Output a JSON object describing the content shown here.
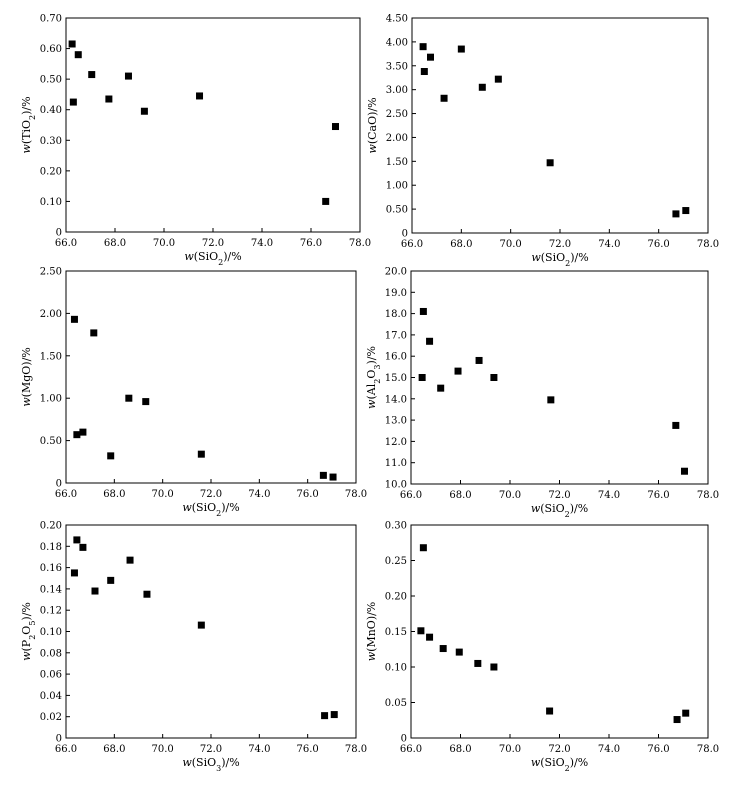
{
  "chart_data": [
    {
      "type": "scatter",
      "xlabel": "w(SiO2)/%",
      "ylabel": "w(TiO2)/%",
      "xlim": [
        66.0,
        78.0
      ],
      "ylim": [
        0,
        0.7
      ],
      "xticks": [
        "66.0",
        "68.0",
        "70.0",
        "72.0",
        "74.0",
        "76.0",
        "78.0"
      ],
      "yticks": [
        "0",
        "0.10",
        "0.20",
        "0.30",
        "0.40",
        "0.50",
        "0.60",
        "0.70"
      ],
      "points": [
        {
          "x": 66.25,
          "y": 0.615
        },
        {
          "x": 66.5,
          "y": 0.58
        },
        {
          "x": 66.3,
          "y": 0.425
        },
        {
          "x": 67.05,
          "y": 0.515
        },
        {
          "x": 67.75,
          "y": 0.435
        },
        {
          "x": 68.55,
          "y": 0.51
        },
        {
          "x": 69.2,
          "y": 0.395
        },
        {
          "x": 71.45,
          "y": 0.445
        },
        {
          "x": 76.6,
          "y": 0.1
        },
        {
          "x": 77.0,
          "y": 0.345
        }
      ]
    },
    {
      "type": "scatter",
      "xlabel": "w(SiO2)/%",
      "ylabel": "w(CaO)/%",
      "xlim": [
        66.0,
        78.0
      ],
      "ylim": [
        0,
        4.5
      ],
      "xticks": [
        "66.0",
        "68.0",
        "70.0",
        "72.0",
        "74.0",
        "76.0",
        "78.0"
      ],
      "yticks": [
        "0",
        "0.50",
        "1.00",
        "1.50",
        "2.00",
        "2.50",
        "3.00",
        "3.50",
        "4.00",
        "4.50"
      ],
      "points": [
        {
          "x": 66.45,
          "y": 3.9
        },
        {
          "x": 66.5,
          "y": 3.38
        },
        {
          "x": 66.75,
          "y": 3.68
        },
        {
          "x": 67.3,
          "y": 2.82
        },
        {
          "x": 68.0,
          "y": 3.85
        },
        {
          "x": 68.85,
          "y": 3.05
        },
        {
          "x": 69.5,
          "y": 3.22
        },
        {
          "x": 71.6,
          "y": 1.47
        },
        {
          "x": 76.7,
          "y": 0.4
        },
        {
          "x": 77.1,
          "y": 0.47
        }
      ]
    },
    {
      "type": "scatter",
      "xlabel": "w(SiO2)/%",
      "ylabel": "w(MgO)/%",
      "xlim": [
        66.0,
        78.0
      ],
      "ylim": [
        0,
        2.5
      ],
      "xticks": [
        "66.0",
        "68.0",
        "70.0",
        "72.0",
        "74.0",
        "76.0",
        "78.0"
      ],
      "yticks": [
        "0",
        "0.50",
        "1.00",
        "1.50",
        "2.00",
        "2.50"
      ],
      "points": [
        {
          "x": 66.35,
          "y": 1.93
        },
        {
          "x": 66.45,
          "y": 0.57
        },
        {
          "x": 66.7,
          "y": 0.6
        },
        {
          "x": 67.15,
          "y": 1.77
        },
        {
          "x": 67.85,
          "y": 0.32
        },
        {
          "x": 68.6,
          "y": 1.0
        },
        {
          "x": 69.3,
          "y": 0.96
        },
        {
          "x": 71.6,
          "y": 0.34
        },
        {
          "x": 76.65,
          "y": 0.09
        },
        {
          "x": 77.05,
          "y": 0.07
        }
      ]
    },
    {
      "type": "scatter",
      "xlabel": "w(SiO2)/%",
      "ylabel": "w(Al2O3)/%",
      "xlim": [
        66.0,
        78.0
      ],
      "ylim": [
        10.0,
        20.0
      ],
      "xticks": [
        "66.0",
        "68.0",
        "70.0",
        "72.0",
        "74.0",
        "76.0",
        "78.0"
      ],
      "yticks": [
        "10.0",
        "11.0",
        "12.0",
        "13.0",
        "14.0",
        "15.0",
        "16.0",
        "17.0",
        "18.0",
        "19.0",
        "20.0"
      ],
      "points": [
        {
          "x": 66.5,
          "y": 18.1
        },
        {
          "x": 66.45,
          "y": 15.0
        },
        {
          "x": 66.75,
          "y": 16.7
        },
        {
          "x": 67.2,
          "y": 14.5
        },
        {
          "x": 67.9,
          "y": 15.3
        },
        {
          "x": 68.75,
          "y": 15.8
        },
        {
          "x": 69.35,
          "y": 15.0
        },
        {
          "x": 71.65,
          "y": 13.95
        },
        {
          "x": 76.7,
          "y": 12.75
        },
        {
          "x": 77.05,
          "y": 10.6
        }
      ]
    },
    {
      "type": "scatter",
      "xlabel": "w(SiO3)/%",
      "ylabel": "w(P2O5)/%",
      "xlim": [
        66.0,
        78.0
      ],
      "ylim": [
        0,
        0.2
      ],
      "xticks": [
        "66.0",
        "68.0",
        "70.0",
        "72.0",
        "74.0",
        "76.0",
        "78.0"
      ],
      "yticks": [
        "0",
        "0.02",
        "0.04",
        "0.06",
        "0.08",
        "0.10",
        "0.12",
        "0.14",
        "0.16",
        "0.18",
        "0.20"
      ],
      "points": [
        {
          "x": 66.35,
          "y": 0.155
        },
        {
          "x": 66.45,
          "y": 0.186
        },
        {
          "x": 66.7,
          "y": 0.179
        },
        {
          "x": 67.2,
          "y": 0.138
        },
        {
          "x": 67.85,
          "y": 0.148
        },
        {
          "x": 68.65,
          "y": 0.167
        },
        {
          "x": 69.35,
          "y": 0.135
        },
        {
          "x": 71.6,
          "y": 0.106
        },
        {
          "x": 76.7,
          "y": 0.021
        },
        {
          "x": 77.1,
          "y": 0.022
        }
      ]
    },
    {
      "type": "scatter",
      "xlabel": "w(SiO2)/%",
      "ylabel": "w(MnO)/%",
      "xlim": [
        66.0,
        78.0
      ],
      "ylim": [
        0,
        0.3
      ],
      "xticks": [
        "66.0",
        "68.0",
        "70.0",
        "72.0",
        "74.0",
        "76.0",
        "78.0"
      ],
      "yticks": [
        "0",
        "0.05",
        "0.10",
        "0.15",
        "0.20",
        "0.25",
        "0.30"
      ],
      "points": [
        {
          "x": 66.4,
          "y": 0.151
        },
        {
          "x": 66.5,
          "y": 0.268
        },
        {
          "x": 66.75,
          "y": 0.142
        },
        {
          "x": 67.3,
          "y": 0.126
        },
        {
          "x": 67.95,
          "y": 0.121
        },
        {
          "x": 68.7,
          "y": 0.105
        },
        {
          "x": 69.35,
          "y": 0.1
        },
        {
          "x": 71.6,
          "y": 0.038
        },
        {
          "x": 76.75,
          "y": 0.026
        },
        {
          "x": 77.1,
          "y": 0.035
        }
      ]
    }
  ]
}
